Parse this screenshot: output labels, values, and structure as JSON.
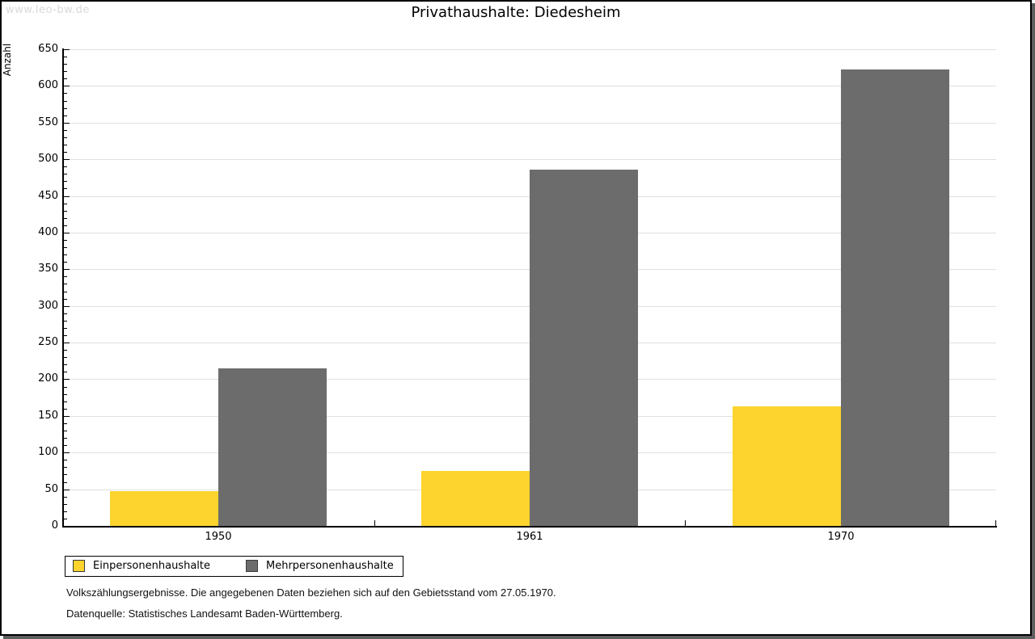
{
  "watermark": "www.leo-bw.de",
  "chart_data": {
    "type": "bar",
    "title": "Privathaushalte: Diedesheim",
    "xlabel": "",
    "ylabel": "Anzahl",
    "categories": [
      "1950",
      "1961",
      "1970"
    ],
    "series": [
      {
        "name": "Einpersonenhaushalte",
        "color": "#fcd42d",
        "values": [
          47,
          75,
          163
        ]
      },
      {
        "name": "Mehrpersonenhaushalte",
        "color": "#6c6c6c",
        "values": [
          215,
          486,
          622
        ]
      }
    ],
    "ylim": [
      0,
      650
    ],
    "y_major_step": 50,
    "y_minor_step": 10,
    "grid": true,
    "legend_position": "bottom-left",
    "colors": {
      "grid": "#e0e0e0",
      "axis": "#000000"
    }
  },
  "footer": {
    "line1": "Volkszählungsergebnisse. Die angegebenen Daten beziehen sich auf den Gebietsstand vom 27.05.1970.",
    "line2": "Datenquelle: Statistisches Landesamt Baden-Württemberg."
  }
}
